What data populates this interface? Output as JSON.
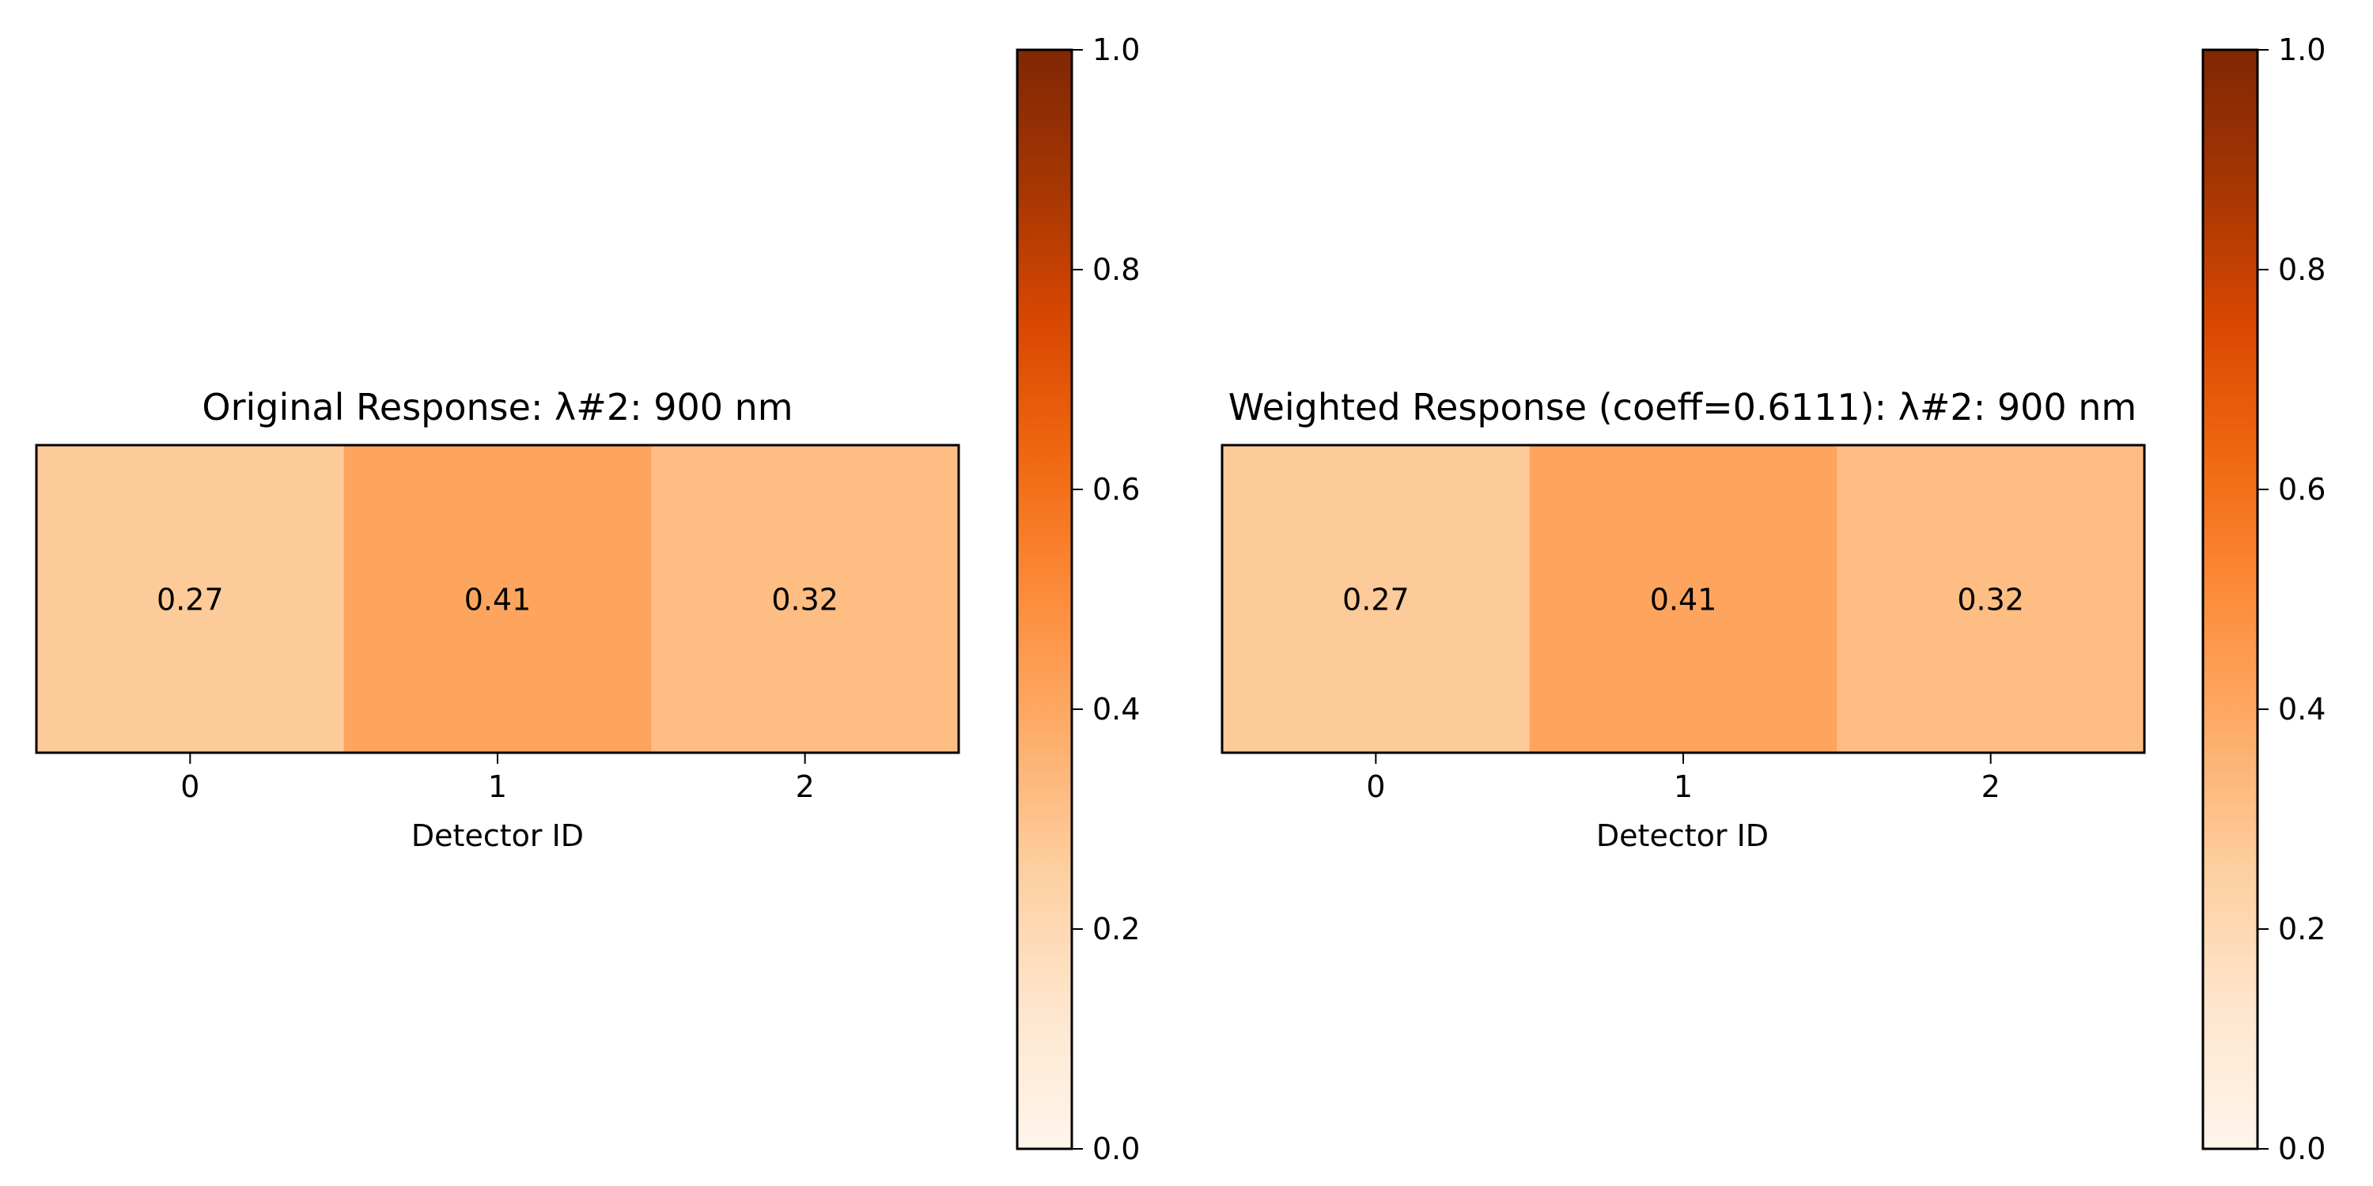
{
  "chart_data": [
    {
      "type": "heatmap",
      "title": "Original Response: λ#2: 900 nm",
      "xlabel": "Detector ID",
      "ylabel": "",
      "categories": [
        "0",
        "1",
        "2"
      ],
      "values": [
        0.27,
        0.41,
        0.32
      ],
      "value_labels": [
        "0.27",
        "0.41",
        "0.32"
      ],
      "colormap": "Oranges",
      "vmin": 0.0,
      "vmax": 1.0,
      "colorbar_ticks": [
        "0.0",
        "0.2",
        "0.4",
        "0.6",
        "0.8",
        "1.0"
      ]
    },
    {
      "type": "heatmap",
      "title": "Weighted Response (coeff=0.6111): λ#2: 900 nm",
      "xlabel": "Detector ID",
      "ylabel": "",
      "categories": [
        "0",
        "1",
        "2"
      ],
      "values": [
        0.27,
        0.41,
        0.32
      ],
      "value_labels": [
        "0.27",
        "0.41",
        "0.32"
      ],
      "colormap": "Oranges",
      "vmin": 0.0,
      "vmax": 1.0,
      "colorbar_ticks": [
        "0.0",
        "0.2",
        "0.4",
        "0.6",
        "0.8",
        "1.0"
      ]
    }
  ]
}
